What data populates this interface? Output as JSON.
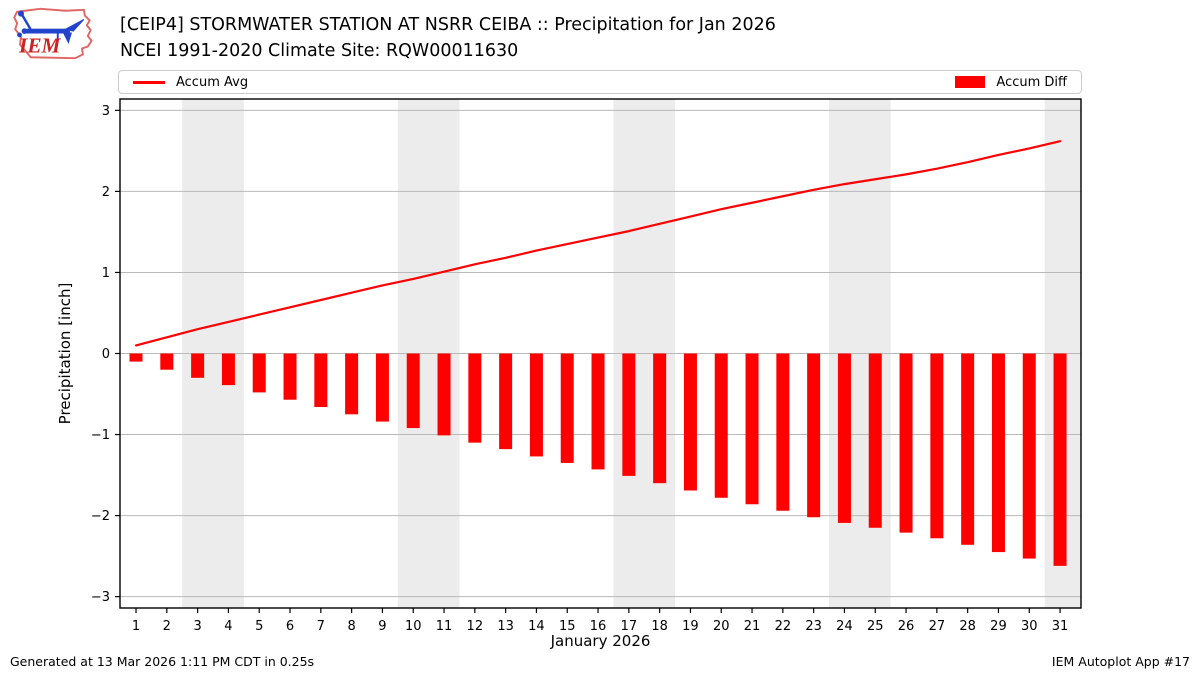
{
  "header": {
    "logo": {
      "text": "IEM"
    }
  },
  "legend": {
    "avg_label": "Accum Avg",
    "diff_label": "Accum Diff"
  },
  "footer": {
    "generated": "Generated at 13 Mar 2026 1:11 PM CDT in 0.25s",
    "app": "IEM Autoplot App #17"
  },
  "colors": {
    "accum_avg_line": "#ff0000",
    "accum_diff_bar": "#ff0000",
    "weekend_band": "#ececec",
    "gridline": "#b9b9b9",
    "axis": "#000000",
    "logo_outline": "#e06666",
    "logo_text": "#cc2222",
    "logo_vane": "#2244cc"
  },
  "chart_data": {
    "type": "bar",
    "title": "[CEIP4] STORMWATER STATION AT NSRR CEIBA :: Precipitation for Jan 2026",
    "subtitle": "NCEI 1991-2020 Climate Site: RQW00011630",
    "xlabel": "January 2026",
    "ylabel": "Precipitation [inch]",
    "x": [
      1,
      2,
      3,
      4,
      5,
      6,
      7,
      8,
      9,
      10,
      11,
      12,
      13,
      14,
      15,
      16,
      17,
      18,
      19,
      20,
      21,
      22,
      23,
      24,
      25,
      26,
      27,
      28,
      29,
      30,
      31
    ],
    "series": [
      {
        "name": "Accum Avg",
        "type": "line",
        "color": "#ff0000",
        "values": [
          0.1,
          0.2,
          0.3,
          0.39,
          0.48,
          0.57,
          0.66,
          0.75,
          0.84,
          0.92,
          1.01,
          1.1,
          1.18,
          1.27,
          1.35,
          1.43,
          1.51,
          1.6,
          1.69,
          1.78,
          1.86,
          1.94,
          2.02,
          2.09,
          2.15,
          2.21,
          2.28,
          2.36,
          2.45,
          2.53,
          2.62
        ]
      },
      {
        "name": "Accum Diff",
        "type": "bar",
        "color": "#ff0000",
        "values": [
          -0.1,
          -0.2,
          -0.3,
          -0.39,
          -0.48,
          -0.57,
          -0.66,
          -0.75,
          -0.84,
          -0.92,
          -1.01,
          -1.1,
          -1.18,
          -1.27,
          -1.35,
          -1.43,
          -1.51,
          -1.6,
          -1.69,
          -1.78,
          -1.86,
          -1.94,
          -2.02,
          -2.09,
          -2.15,
          -2.21,
          -2.28,
          -2.36,
          -2.45,
          -2.53,
          -2.62
        ]
      }
    ],
    "xlim": [
      0.48,
      31.68
    ],
    "ylim": [
      -3.14,
      3.14
    ],
    "yticks": [
      -3,
      -2,
      -1,
      0,
      1,
      2,
      3
    ],
    "grid": "horizontal",
    "legend_position": "top strip spanning plot width",
    "weekend_bands": [
      [
        2.5,
        4.5
      ],
      [
        9.5,
        11.5
      ],
      [
        16.5,
        18.5
      ],
      [
        23.5,
        25.5
      ],
      [
        30.5,
        31.68
      ]
    ]
  }
}
